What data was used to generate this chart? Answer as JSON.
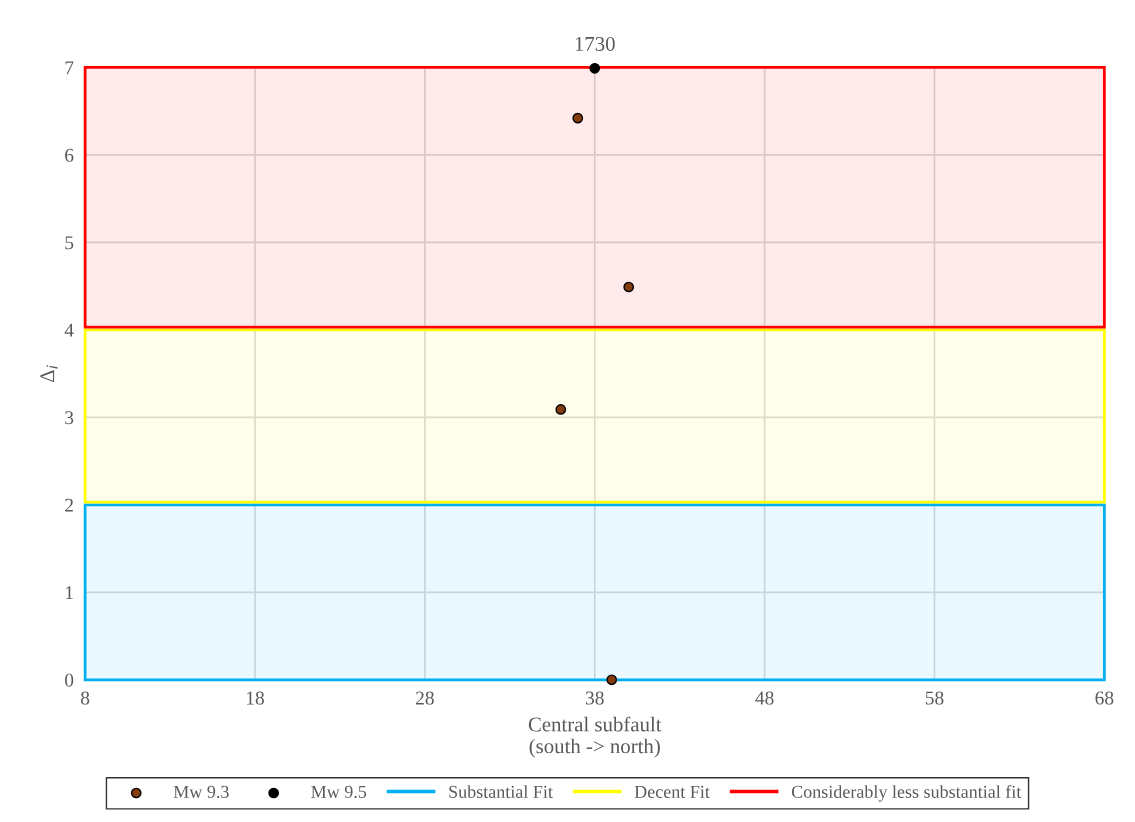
{
  "chart_data": {
    "type": "scatter",
    "title": "1730",
    "xlabel": "Central subfault\n(south -> north)",
    "ylabel": "Δ$_{i}$",
    "xlim": [
      8,
      68
    ],
    "xticks": [
      8,
      18,
      28,
      38,
      48,
      58,
      68
    ],
    "ylim": [
      0,
      7
    ],
    "yticks": [
      0,
      1,
      2,
      3,
      4,
      5,
      6,
      7
    ],
    "grid": true,
    "legend": "bottom",
    "marker": "circle",
    "series": [
      {
        "name": "Mw 9.3",
        "color": "#843c0c",
        "x": [
          37,
          40,
          36,
          39
        ],
        "values": [
          6.42,
          4.49,
          3.09,
          0
        ]
      },
      {
        "name": "Mw 9.5",
        "color": "#000000",
        "x": [
          38
        ],
        "values": [
          6.99
        ]
      }
    ],
    "bands": [
      {
        "axis": "y",
        "from": 0,
        "to": 2,
        "label": "Substantial Fit",
        "color": "#00b0f0"
      },
      {
        "axis": "y",
        "from": 2.03,
        "to": 4,
        "label": "Decent Fit",
        "color": "#ffff00"
      },
      {
        "axis": "y",
        "from": 4.03,
        "to": 7,
        "label": "Considerably less substantial fit",
        "color": "#ff0000"
      }
    ]
  }
}
